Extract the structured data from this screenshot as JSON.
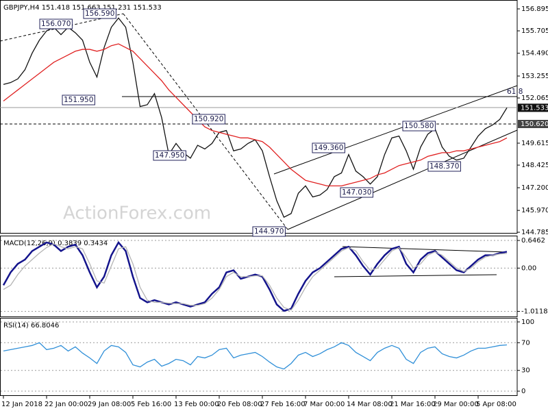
{
  "chart_data": [
    {
      "type": "line",
      "title": "GBPJPY,H4 151.418 151.663 151.231 151.533",
      "watermark": "ActionForex.com",
      "categories": [
        "12 Jan 2018",
        null,
        null,
        null,
        null,
        null,
        "22 Jan 00:00",
        null,
        null,
        null,
        null,
        null,
        "29 Jan 08:00",
        null,
        null,
        null,
        null,
        null,
        "5 Feb 16:00",
        null,
        null,
        null,
        null,
        null,
        "13 Feb 00:00",
        null,
        null,
        null,
        null,
        null,
        "20 Feb 08:00",
        null,
        null,
        null,
        null,
        null,
        "27 Feb 16:00",
        null,
        null,
        null,
        null,
        null,
        "7 Mar 00:00",
        null,
        null,
        null,
        null,
        null,
        "14 Mar 08:00",
        null,
        null,
        null,
        null,
        null,
        "21 Mar 16:00",
        null,
        null,
        null,
        null,
        null,
        "29 Mar 00:00",
        null,
        null,
        null,
        null,
        null,
        "5 Apr 08:00",
        null,
        null,
        null,
        null
      ],
      "series": [
        {
          "name": "Close",
          "color": "#111111",
          "values": [
            152.8,
            152.9,
            153.1,
            153.6,
            154.5,
            155.2,
            155.7,
            155.9,
            155.5,
            155.9,
            155.6,
            155.2,
            154.0,
            153.2,
            154.8,
            155.9,
            156.4,
            155.9,
            154.0,
            151.6,
            151.7,
            152.3,
            151.0,
            149.0,
            149.6,
            149.1,
            148.8,
            149.5,
            149.3,
            149.6,
            150.2,
            150.3,
            149.2,
            149.3,
            149.6,
            149.8,
            149.2,
            147.8,
            146.5,
            145.6,
            145.8,
            146.9,
            147.3,
            146.7,
            146.8,
            147.1,
            147.8,
            148.0,
            149.0,
            148.1,
            147.8,
            147.4,
            147.8,
            149.0,
            149.9,
            150.0,
            149.2,
            148.2,
            149.4,
            150.1,
            150.4,
            149.4,
            148.9,
            148.7,
            148.8,
            149.4,
            150.0,
            150.4,
            150.6,
            150.9,
            151.533
          ]
        },
        {
          "name": "MA",
          "color": "#e02020",
          "values": [
            151.9,
            152.2,
            152.5,
            152.8,
            153.1,
            153.4,
            153.7,
            154.0,
            154.2,
            154.4,
            154.6,
            154.7,
            154.7,
            154.6,
            154.7,
            154.9,
            155.0,
            154.8,
            154.6,
            154.2,
            153.8,
            153.4,
            153.0,
            152.5,
            152.1,
            151.7,
            151.3,
            150.9,
            150.5,
            150.3,
            150.2,
            150.1,
            150.0,
            149.9,
            149.9,
            149.8,
            149.7,
            149.4,
            149.0,
            148.6,
            148.2,
            147.9,
            147.6,
            147.5,
            147.4,
            147.3,
            147.3,
            147.3,
            147.4,
            147.5,
            147.6,
            147.7,
            147.9,
            148.0,
            148.2,
            148.4,
            148.5,
            148.6,
            148.7,
            148.9,
            149.0,
            149.1,
            149.1,
            149.2,
            149.2,
            149.3,
            149.4,
            149.5,
            149.6,
            149.7,
            149.9
          ]
        }
      ],
      "annotations": [
        "156.070",
        "156.590",
        "151.950",
        "150.920",
        "147.950",
        "144.970",
        "149.360",
        "147.030",
        "150.580",
        "148.370",
        "61.8"
      ],
      "price_tags": [
        "151.533",
        "150.620"
      ],
      "ylim": [
        144.75,
        157.34
      ],
      "yticks": [
        156.895,
        155.705,
        {
          "value": 154.49,
          "label": "154.490"
        },
        153.255,
        152.065,
        149.615,
        148.425,
        {
          "value": 147.2,
          "label": "147.200"
        },
        {
          "value": 145.97,
          "label": "145.970"
        },
        144.785
      ],
      "grid": false
    },
    {
      "type": "line",
      "title": "MACD(12,26,9) 0.3839 0.3434",
      "series": [
        {
          "name": "MACD",
          "color": "#14148c",
          "values": [
            -0.4,
            -0.1,
            0.1,
            0.2,
            0.4,
            0.5,
            0.6,
            0.55,
            0.4,
            0.5,
            0.55,
            0.3,
            -0.1,
            -0.45,
            -0.2,
            0.3,
            0.6,
            0.4,
            -0.2,
            -0.7,
            -0.8,
            -0.75,
            -0.8,
            -0.85,
            -0.8,
            -0.85,
            -0.9,
            -0.85,
            -0.8,
            -0.6,
            -0.45,
            -0.1,
            -0.05,
            -0.25,
            -0.2,
            -0.15,
            -0.2,
            -0.5,
            -0.85,
            -1.0,
            -0.95,
            -0.6,
            -0.3,
            -0.1,
            0.0,
            0.15,
            0.3,
            0.45,
            0.5,
            0.3,
            0.05,
            -0.15,
            0.1,
            0.3,
            0.45,
            0.5,
            0.1,
            -0.1,
            0.2,
            0.35,
            0.4,
            0.25,
            0.1,
            -0.05,
            -0.1,
            0.05,
            0.2,
            0.3,
            0.3,
            0.35,
            0.3839
          ]
        },
        {
          "name": "Signal",
          "color": "#b4b4b4",
          "values": [
            -0.5,
            -0.4,
            -0.15,
            0.05,
            0.2,
            0.35,
            0.48,
            0.57,
            0.5,
            0.45,
            0.5,
            0.45,
            0.1,
            -0.3,
            -0.35,
            0.05,
            0.45,
            0.5,
            0.1,
            -0.45,
            -0.75,
            -0.8,
            -0.8,
            -0.82,
            -0.83,
            -0.83,
            -0.87,
            -0.87,
            -0.83,
            -0.7,
            -0.5,
            -0.2,
            -0.1,
            -0.2,
            -0.2,
            -0.18,
            -0.18,
            -0.4,
            -0.7,
            -0.92,
            -0.98,
            -0.75,
            -0.45,
            -0.2,
            -0.05,
            0.1,
            0.25,
            0.4,
            0.48,
            0.4,
            0.15,
            -0.05,
            0.0,
            0.2,
            0.4,
            0.48,
            0.25,
            0.0,
            0.1,
            0.3,
            0.38,
            0.3,
            0.15,
            0.0,
            -0.08,
            0.0,
            0.15,
            0.26,
            0.3,
            0.33,
            0.3434
          ]
        }
      ],
      "ylim": [
        -1.131,
        0.743
      ],
      "yticks": [
        0.6462,
        {
          "value": 0,
          "label": "0.00"
        },
        -1.0118
      ],
      "grid": true
    },
    {
      "type": "line",
      "title": "RSI(14) 66.8046",
      "series": [
        {
          "name": "RSI",
          "color": "#2f8fd8",
          "values": [
            58,
            60,
            62,
            64,
            66,
            70,
            60,
            62,
            66,
            58,
            64,
            55,
            48,
            40,
            58,
            66,
            64,
            56,
            38,
            35,
            42,
            46,
            36,
            40,
            46,
            44,
            38,
            50,
            48,
            52,
            60,
            62,
            48,
            52,
            54,
            56,
            50,
            42,
            35,
            32,
            40,
            52,
            56,
            50,
            54,
            60,
            64,
            70,
            66,
            56,
            50,
            44,
            56,
            62,
            66,
            62,
            46,
            40,
            56,
            62,
            64,
            54,
            50,
            48,
            52,
            58,
            62,
            62,
            64,
            66,
            66.8046
          ]
        }
      ],
      "ylim": [
        -5.9,
        104.9
      ],
      "yticks": [
        100,
        70,
        30,
        0
      ],
      "grid": true
    }
  ]
}
